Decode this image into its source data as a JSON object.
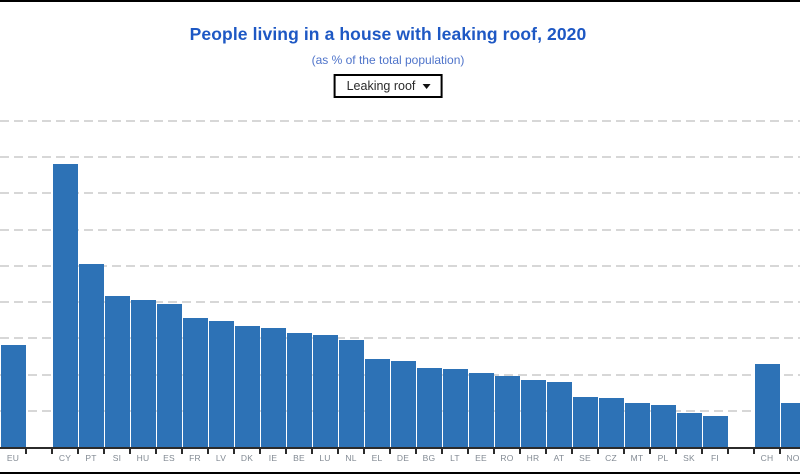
{
  "header": {
    "title": "People living in a house with leaking roof, 2020",
    "subtitle": "(as % of the total population)",
    "dropdown_label": "Leaking roof"
  },
  "colors": {
    "bar": "#2d72b6",
    "title": "#1e58c4",
    "subtitle": "#4f74ca",
    "grid": "#d7d7d7",
    "axis": "#2b2b2b",
    "tick": "#2b2b2b",
    "xlabel": "#828a93",
    "frame_border": "#000000",
    "dropdown_border": "#000000"
  },
  "chart_data": {
    "type": "bar",
    "title": "People living in a house with leaking roof, 2020",
    "subtitle": "(as % of the total population)",
    "ylabel": "",
    "xlabel": "",
    "unit": "% of total population",
    "ylim": [
      0,
      47
    ],
    "gridline_values": [
      5,
      10,
      15,
      20,
      25,
      30,
      35,
      40,
      45
    ],
    "y_axis_tick_labels_visible": false,
    "grid_style": "dashed",
    "legend": "none",
    "items": [
      {
        "code": "EU",
        "value": 14.0,
        "slot": 0
      },
      {
        "code": "CY",
        "value": 39.1,
        "slot": 2
      },
      {
        "code": "PT",
        "value": 25.2,
        "slot": 3
      },
      {
        "code": "SI",
        "value": 20.8,
        "slot": 4
      },
      {
        "code": "HU",
        "value": 20.3,
        "slot": 5
      },
      {
        "code": "ES",
        "value": 19.7,
        "slot": 6
      },
      {
        "code": "FR",
        "value": 17.8,
        "slot": 7
      },
      {
        "code": "LV",
        "value": 17.4,
        "slot": 8
      },
      {
        "code": "DK",
        "value": 16.7,
        "slot": 9
      },
      {
        "code": "IE",
        "value": 16.4,
        "slot": 10
      },
      {
        "code": "BE",
        "value": 15.7,
        "slot": 11
      },
      {
        "code": "LU",
        "value": 15.4,
        "slot": 12
      },
      {
        "code": "NL",
        "value": 14.7,
        "slot": 13
      },
      {
        "code": "EL",
        "value": 12.1,
        "slot": 14
      },
      {
        "code": "DE",
        "value": 11.9,
        "slot": 15
      },
      {
        "code": "BG",
        "value": 10.9,
        "slot": 16
      },
      {
        "code": "LT",
        "value": 10.7,
        "slot": 17
      },
      {
        "code": "EE",
        "value": 10.2,
        "slot": 18
      },
      {
        "code": "RO",
        "value": 9.8,
        "slot": 19
      },
      {
        "code": "HR",
        "value": 9.3,
        "slot": 20
      },
      {
        "code": "AT",
        "value": 9.0,
        "slot": 21
      },
      {
        "code": "SE",
        "value": 6.9,
        "slot": 22
      },
      {
        "code": "CZ",
        "value": 6.7,
        "slot": 23
      },
      {
        "code": "MT",
        "value": 6.0,
        "slot": 24
      },
      {
        "code": "PL",
        "value": 5.8,
        "slot": 25
      },
      {
        "code": "SK",
        "value": 4.7,
        "slot": 26
      },
      {
        "code": "FI",
        "value": 4.3,
        "slot": 27
      },
      {
        "code": "CH",
        "value": 11.4,
        "slot": 29
      },
      {
        "code": "NO",
        "value": 6.1,
        "slot": 30
      }
    ]
  }
}
